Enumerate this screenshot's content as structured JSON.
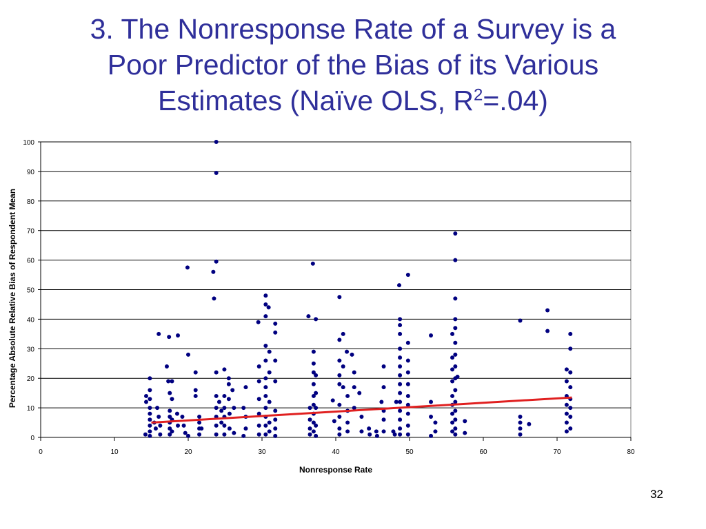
{
  "slide": {
    "title_line1": "3. The Nonresponse Rate of a Survey is a",
    "title_line2": "Poor Predictor of the Bias of its Various",
    "title_line3_pre": "Estimates (Naïve OLS, R",
    "title_line3_sup": "2",
    "title_line3_post": "=.04)",
    "page_number": "32"
  },
  "colors": {
    "title": "#2f2f9a",
    "points": "#000080",
    "fit_line": "#e02020",
    "gridline": "#000000"
  },
  "chart_data": {
    "type": "scatter",
    "title": "",
    "xlabel": "Nonresponse Rate",
    "ylabel": "Percentage Absolute Relative Bias of Respondent Mean",
    "xlim": [
      0,
      80
    ],
    "ylim": [
      0,
      100
    ],
    "x_ticks": [
      "0",
      "10",
      "20",
      "30",
      "40",
      "50",
      "60",
      "70",
      "80"
    ],
    "y_ticks": [
      "0",
      "10",
      "20",
      "30",
      "40",
      "50",
      "60",
      "70",
      "80",
      "90",
      "100"
    ],
    "grid": "horizontal",
    "legend": "none",
    "fit_line": {
      "x": [
        15,
        72
      ],
      "y": [
        5,
        13.5
      ]
    },
    "series": [
      {
        "values": [
          [
            14.2,
            1
          ],
          [
            14.3,
            12
          ],
          [
            14.3,
            14
          ],
          [
            14.8,
            20
          ],
          [
            14.8,
            16
          ],
          [
            14.8,
            13
          ],
          [
            14.8,
            10
          ],
          [
            14.8,
            8
          ],
          [
            14.8,
            6
          ],
          [
            14.8,
            4
          ],
          [
            14.8,
            2
          ],
          [
            14.8,
            0.5
          ],
          [
            15.4,
            5
          ],
          [
            15.6,
            3
          ],
          [
            15.8,
            10
          ],
          [
            16.0,
            35
          ],
          [
            16.0,
            7
          ],
          [
            16.2,
            1
          ],
          [
            16.2,
            4
          ],
          [
            17.1,
            24
          ],
          [
            17.3,
            19
          ],
          [
            17.4,
            34
          ],
          [
            17.5,
            15
          ],
          [
            17.5,
            9
          ],
          [
            17.5,
            7
          ],
          [
            17.5,
            5
          ],
          [
            17.5,
            3
          ],
          [
            17.5,
            1
          ],
          [
            17.8,
            19
          ],
          [
            17.8,
            13
          ],
          [
            17.8,
            6
          ],
          [
            17.8,
            2
          ],
          [
            18.5,
            8
          ],
          [
            18.6,
            34.5
          ],
          [
            18.6,
            4
          ],
          [
            19.2,
            7
          ],
          [
            19.4,
            4
          ],
          [
            19.6,
            1.5
          ],
          [
            19.9,
            57.5
          ],
          [
            20.0,
            28
          ],
          [
            20.0,
            0.5
          ],
          [
            21.0,
            22
          ],
          [
            21.0,
            16
          ],
          [
            21.0,
            14
          ],
          [
            21.5,
            7
          ],
          [
            21.5,
            5
          ],
          [
            21.5,
            3
          ],
          [
            21.5,
            1
          ],
          [
            21.8,
            3
          ],
          [
            23.4,
            56
          ],
          [
            23.5,
            47
          ],
          [
            23.8,
            100
          ],
          [
            23.8,
            89.5
          ],
          [
            23.8,
            59.5
          ],
          [
            23.8,
            22
          ],
          [
            23.8,
            14
          ],
          [
            23.8,
            10
          ],
          [
            23.8,
            7
          ],
          [
            23.8,
            4
          ],
          [
            23.8,
            1
          ],
          [
            24.2,
            12
          ],
          [
            24.5,
            9
          ],
          [
            24.5,
            5
          ],
          [
            24.9,
            23
          ],
          [
            24.9,
            14
          ],
          [
            24.9,
            10
          ],
          [
            24.9,
            7
          ],
          [
            24.9,
            4
          ],
          [
            24.9,
            1
          ],
          [
            25.5,
            20
          ],
          [
            25.5,
            18
          ],
          [
            25.5,
            13
          ],
          [
            25.6,
            8
          ],
          [
            25.6,
            3
          ],
          [
            26.0,
            16
          ],
          [
            26.2,
            1.5
          ],
          [
            26.2,
            10
          ],
          [
            27.5,
            10
          ],
          [
            27.5,
            0.5
          ],
          [
            27.8,
            17
          ],
          [
            27.8,
            7
          ],
          [
            27.8,
            3
          ],
          [
            29.5,
            39
          ],
          [
            29.6,
            24
          ],
          [
            29.6,
            19
          ],
          [
            29.6,
            13
          ],
          [
            29.6,
            8
          ],
          [
            29.6,
            4
          ],
          [
            29.6,
            1
          ],
          [
            30.5,
            48
          ],
          [
            30.5,
            45
          ],
          [
            30.5,
            41
          ],
          [
            30.5,
            31
          ],
          [
            30.5,
            26
          ],
          [
            30.5,
            20
          ],
          [
            30.5,
            17
          ],
          [
            30.5,
            14
          ],
          [
            30.5,
            10
          ],
          [
            30.5,
            7
          ],
          [
            30.5,
            4
          ],
          [
            30.5,
            1
          ],
          [
            30.9,
            44
          ],
          [
            31.0,
            29
          ],
          [
            31.0,
            22
          ],
          [
            31.0,
            12
          ],
          [
            31.0,
            5
          ],
          [
            31.0,
            2
          ],
          [
            31.8,
            38.5
          ],
          [
            31.8,
            35.5
          ],
          [
            31.8,
            26
          ],
          [
            31.8,
            19
          ],
          [
            31.8,
            9
          ],
          [
            31.8,
            6
          ],
          [
            31.8,
            3
          ],
          [
            31.8,
            0.5
          ],
          [
            36.3,
            41
          ],
          [
            36.5,
            10
          ],
          [
            36.5,
            6
          ],
          [
            36.5,
            3
          ],
          [
            36.5,
            1
          ],
          [
            36.9,
            58.8
          ],
          [
            37.0,
            29
          ],
          [
            37.0,
            25
          ],
          [
            37.0,
            22
          ],
          [
            37.0,
            18
          ],
          [
            37.0,
            14
          ],
          [
            37.0,
            11
          ],
          [
            37.0,
            8
          ],
          [
            37.0,
            5
          ],
          [
            37.0,
            2
          ],
          [
            37.3,
            40
          ],
          [
            37.3,
            21
          ],
          [
            37.3,
            15
          ],
          [
            37.3,
            10
          ],
          [
            37.3,
            4
          ],
          [
            37.3,
            0.5
          ],
          [
            39.6,
            12.5
          ],
          [
            39.8,
            5.5
          ],
          [
            40.5,
            47.5
          ],
          [
            40.5,
            33
          ],
          [
            40.5,
            26
          ],
          [
            40.5,
            21
          ],
          [
            40.5,
            18
          ],
          [
            40.5,
            11
          ],
          [
            40.5,
            7
          ],
          [
            40.5,
            3
          ],
          [
            40.5,
            1
          ],
          [
            41.0,
            35
          ],
          [
            41.0,
            24
          ],
          [
            41.0,
            17
          ],
          [
            41.5,
            29
          ],
          [
            41.6,
            14
          ],
          [
            41.6,
            9
          ],
          [
            41.6,
            5
          ],
          [
            41.6,
            2
          ],
          [
            42.2,
            28
          ],
          [
            42.5,
            22
          ],
          [
            42.5,
            17
          ],
          [
            42.5,
            10
          ],
          [
            43.2,
            15
          ],
          [
            43.5,
            2
          ],
          [
            43.5,
            7
          ],
          [
            44.5,
            3
          ],
          [
            44.6,
            1
          ],
          [
            45.5,
            2
          ],
          [
            45.6,
            0.5
          ],
          [
            46.2,
            12
          ],
          [
            46.5,
            24
          ],
          [
            46.5,
            17
          ],
          [
            46.5,
            9
          ],
          [
            46.5,
            6
          ],
          [
            46.5,
            2
          ],
          [
            47.8,
            2
          ],
          [
            48.0,
            1
          ],
          [
            48.2,
            12
          ],
          [
            48.6,
            51.5
          ],
          [
            48.7,
            40
          ],
          [
            48.7,
            38
          ],
          [
            48.7,
            35
          ],
          [
            48.7,
            30
          ],
          [
            48.7,
            27
          ],
          [
            48.7,
            24
          ],
          [
            48.7,
            21
          ],
          [
            48.7,
            18
          ],
          [
            48.7,
            15
          ],
          [
            48.7,
            12
          ],
          [
            48.7,
            9
          ],
          [
            48.7,
            6
          ],
          [
            48.7,
            3
          ],
          [
            48.7,
            1
          ],
          [
            49.8,
            55
          ],
          [
            49.8,
            32
          ],
          [
            49.8,
            26
          ],
          [
            49.8,
            22
          ],
          [
            49.8,
            18
          ],
          [
            49.8,
            14
          ],
          [
            49.8,
            11
          ],
          [
            49.8,
            8
          ],
          [
            49.8,
            4
          ],
          [
            49.8,
            1
          ],
          [
            52.9,
            34.5
          ],
          [
            52.9,
            12
          ],
          [
            52.9,
            7
          ],
          [
            52.9,
            0.5
          ],
          [
            53.5,
            5
          ],
          [
            53.5,
            2
          ],
          [
            55.8,
            35
          ],
          [
            55.8,
            27
          ],
          [
            55.8,
            23
          ],
          [
            55.8,
            19
          ],
          [
            55.8,
            14
          ],
          [
            55.8,
            11
          ],
          [
            55.8,
            8
          ],
          [
            55.8,
            5
          ],
          [
            55.8,
            2
          ],
          [
            56.2,
            69
          ],
          [
            56.2,
            60
          ],
          [
            56.2,
            47
          ],
          [
            56.2,
            40
          ],
          [
            56.2,
            37
          ],
          [
            56.2,
            32
          ],
          [
            56.2,
            28
          ],
          [
            56.2,
            24
          ],
          [
            56.2,
            20
          ],
          [
            56.2,
            16
          ],
          [
            56.2,
            12
          ],
          [
            56.2,
            9
          ],
          [
            56.2,
            6
          ],
          [
            56.2,
            3
          ],
          [
            56.2,
            1
          ],
          [
            56.5,
            20.5
          ],
          [
            57.5,
            5.5
          ],
          [
            57.5,
            1.5
          ],
          [
            65.0,
            39.5
          ],
          [
            65.0,
            7
          ],
          [
            65.0,
            5
          ],
          [
            65.0,
            3
          ],
          [
            65.0,
            1
          ],
          [
            66.2,
            4.5
          ],
          [
            68.7,
            43
          ],
          [
            68.7,
            36
          ],
          [
            71.3,
            23
          ],
          [
            71.3,
            19
          ],
          [
            71.3,
            14
          ],
          [
            71.3,
            11
          ],
          [
            71.3,
            8
          ],
          [
            71.3,
            5
          ],
          [
            71.3,
            2
          ],
          [
            71.8,
            35
          ],
          [
            71.8,
            30
          ],
          [
            71.8,
            22
          ],
          [
            71.8,
            17
          ],
          [
            71.8,
            13
          ],
          [
            71.8,
            10
          ],
          [
            71.8,
            7
          ],
          [
            71.8,
            3
          ]
        ]
      }
    ]
  }
}
